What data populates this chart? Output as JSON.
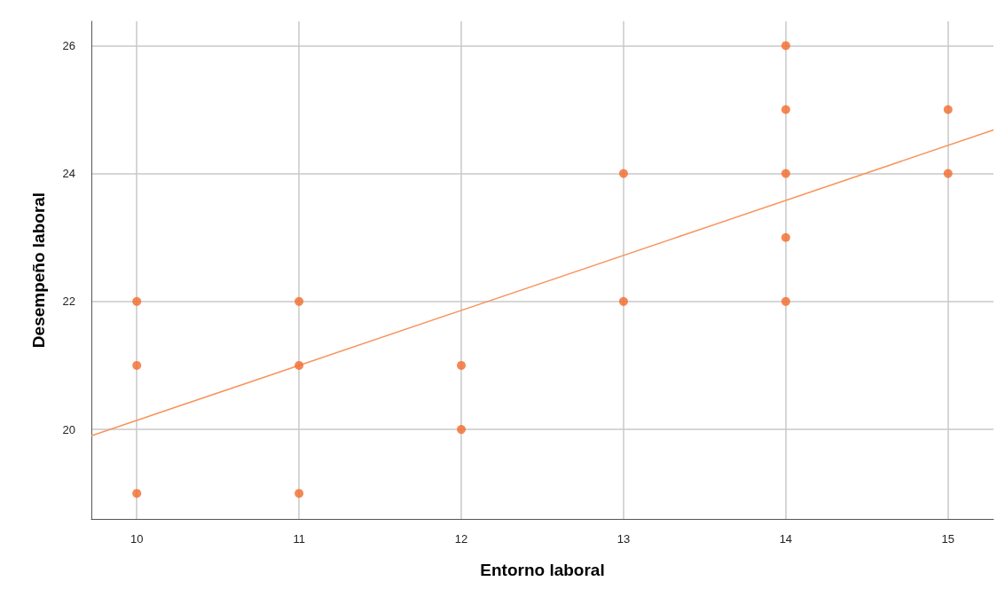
{
  "chart_data": {
    "type": "scatter",
    "xlabel": "Entorno laboral",
    "ylabel": "Desempeño laboral",
    "xlim": [
      9.72,
      15.28
    ],
    "ylim": [
      18.6,
      26.38
    ],
    "xticks": [
      10,
      11,
      12,
      13,
      14,
      15
    ],
    "yticks": [
      20,
      22,
      24,
      26
    ],
    "grid": true,
    "series": [
      {
        "marker": "circle",
        "color": "#f26a2a",
        "x": [
          10,
          10,
          10,
          11,
          11,
          11,
          12,
          12,
          13,
          13,
          14,
          14,
          14,
          14,
          14,
          15,
          15
        ],
        "values": [
          22,
          21,
          19,
          22,
          21,
          19,
          21,
          20,
          24,
          22,
          26,
          25,
          24,
          23,
          22,
          25,
          24
        ]
      },
      {
        "type": "line",
        "color": "#f7955e",
        "x": [
          9.72,
          15.28
        ],
        "values": [
          19.9,
          24.68
        ]
      }
    ]
  }
}
